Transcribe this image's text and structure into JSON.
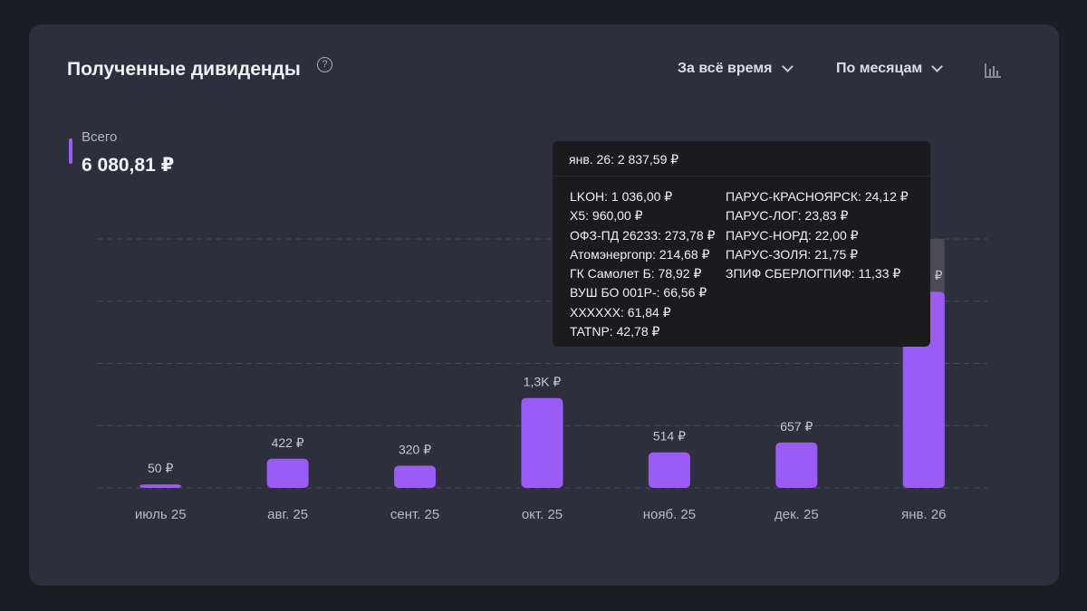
{
  "header": {
    "title": "Полученные дивиденды",
    "help_glyph": "?",
    "period_label": "За всё время",
    "group_label": "По месяцам",
    "chart_icon": "bar-chart-icon"
  },
  "summary": {
    "label": "Всего",
    "value": "6 080,81 ₽",
    "accent": "#9b5cf6"
  },
  "chart_data": {
    "type": "bar",
    "categories": [
      "июль 25",
      "авг. 25",
      "сент. 25",
      "окт. 25",
      "нояб. 25",
      "дек. 25",
      "янв. 26"
    ],
    "values": [
      50,
      422,
      320,
      1300,
      514,
      657,
      2837.59
    ],
    "value_labels": [
      "50 ₽",
      "422 ₽",
      "320 ₽",
      "1,3K ₽",
      "514 ₽",
      "657 ₽",
      "2,8K ₽"
    ],
    "ylim": [
      0,
      3600
    ],
    "grid": true,
    "bar_color": "#9b5cf6",
    "highlighted_index": 6
  },
  "tooltip": {
    "title": "янв. 26: 2 837,59 ₽",
    "left_items": [
      "LKOH: 1 036,00 ₽",
      "X5: 960,00 ₽",
      "ОФЗ-ПД 26233: 273,78 ₽",
      "Атомэнергопр: 214,68 ₽",
      "ГК Самолет Б: 78,92 ₽",
      "ВУШ БО 001Р-: 66,56 ₽",
      "XXXXXX: 61,84 ₽",
      "TATNP: 42,78 ₽"
    ],
    "right_items": [
      "ПАРУС-КРАСНОЯРСК: 24,12 ₽",
      "ПАРУС-ЛОГ: 23,83 ₽",
      "ПАРУС-НОРД: 22,00 ₽",
      "ПАРУС-ЗОЛЯ: 21,75 ₽",
      "ЗПИФ СБЕРЛОГПИФ: 11,33 ₽"
    ]
  }
}
